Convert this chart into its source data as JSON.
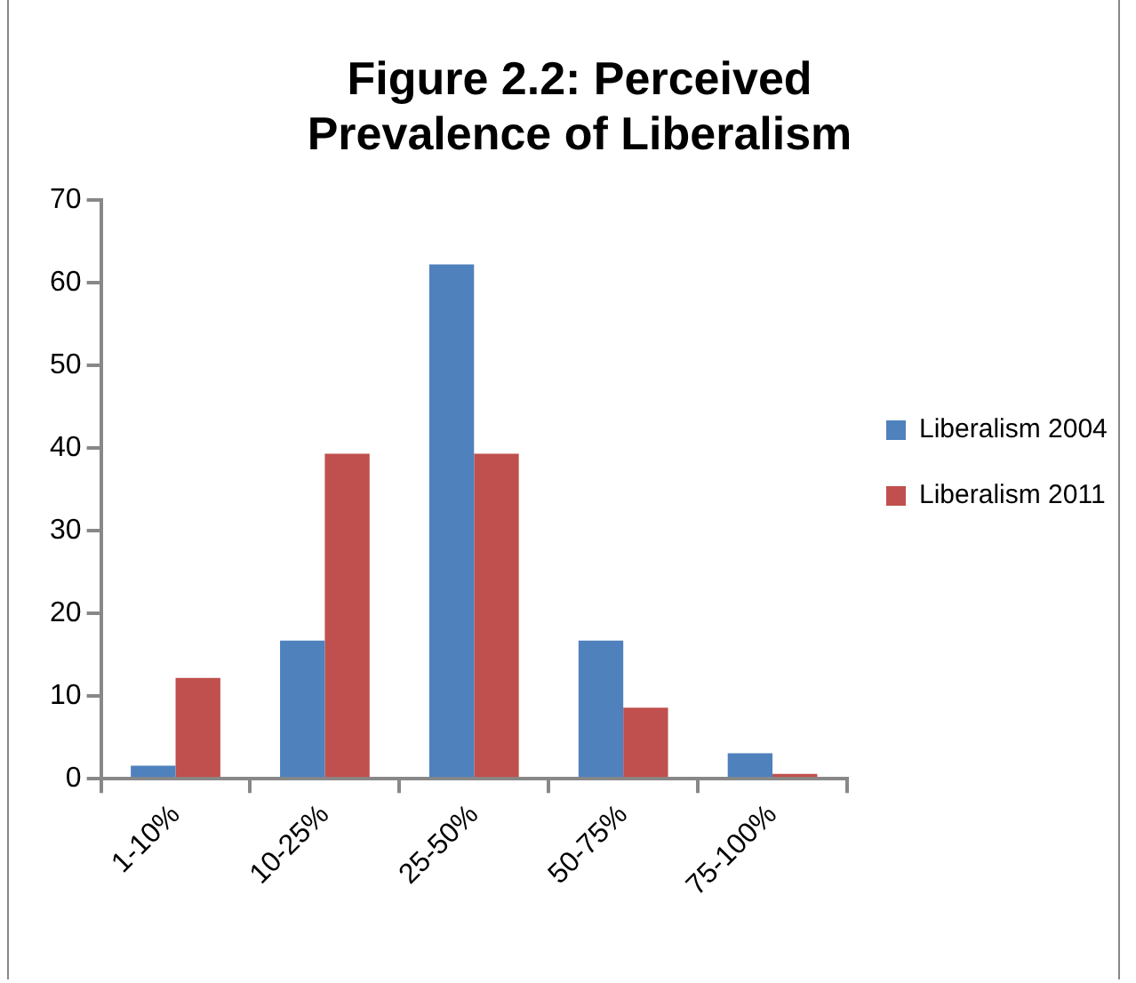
{
  "chart_data": {
    "type": "bar",
    "title": "Figure 2.2: Perceived Prevalence of Liberalism",
    "categories": [
      "1-10%",
      "10-25%",
      "25-50%",
      "50-75%",
      "75-100%"
    ],
    "series": [
      {
        "name": "Liberalism 2004",
        "color": "#4f81bd",
        "values": [
          1.6,
          16.7,
          62.2,
          16.7,
          3.1
        ]
      },
      {
        "name": "Liberalism 2011",
        "color": "#c0504d",
        "values": [
          12.2,
          39.3,
          39.3,
          8.6,
          0.6
        ]
      }
    ],
    "ylim": [
      0,
      70
    ],
    "yticks": [
      0,
      10,
      20,
      30,
      40,
      50,
      60,
      70
    ],
    "grid": false,
    "legend": "right"
  }
}
